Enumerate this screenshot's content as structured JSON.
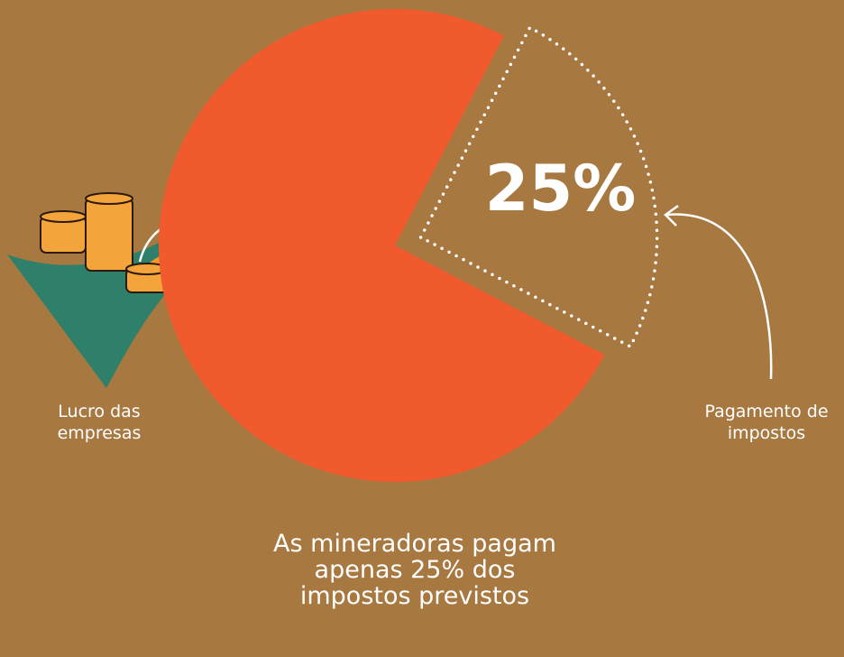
{
  "chart_data": {
    "type": "pie",
    "categories": [
      "Lucro das empresas",
      "Pagamento de impostos"
    ],
    "values": [
      75,
      25
    ],
    "value_labels": [
      null,
      "25%"
    ],
    "colors": [
      "#f15a2c",
      "#ffffff"
    ],
    "caption": "As mineradoras pagam apenas 25% dos impostos previstos"
  }
}
